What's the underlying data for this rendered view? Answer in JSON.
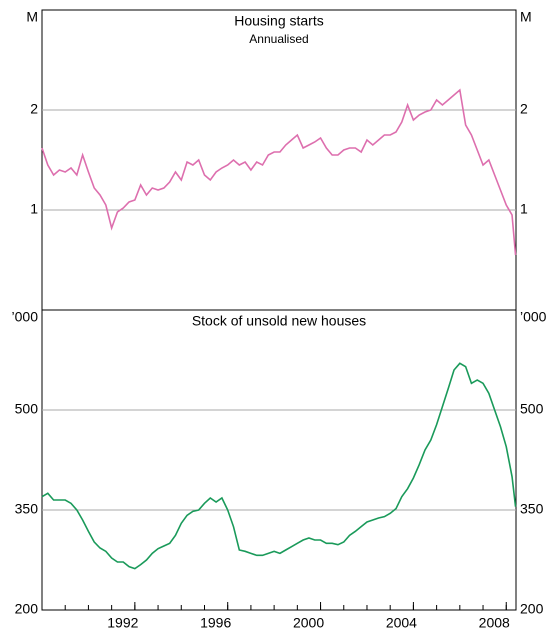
{
  "chart_data": [
    {
      "type": "line",
      "title": "Housing starts",
      "subtitle": "Annualised",
      "y_unit": "M",
      "x": [
        1988.0,
        1988.25,
        1988.5,
        1988.75,
        1989.0,
        1989.25,
        1989.5,
        1989.75,
        1990.0,
        1990.25,
        1990.5,
        1990.75,
        1991.0,
        1991.25,
        1991.5,
        1991.75,
        1992.0,
        1992.25,
        1992.5,
        1992.75,
        1993.0,
        1993.25,
        1993.5,
        1993.75,
        1994.0,
        1994.25,
        1994.5,
        1994.75,
        1995.0,
        1995.25,
        1995.5,
        1995.75,
        1996.0,
        1996.25,
        1996.5,
        1996.75,
        1997.0,
        1997.25,
        1997.5,
        1997.75,
        1998.0,
        1998.25,
        1998.5,
        1998.75,
        1999.0,
        1999.25,
        1999.5,
        1999.75,
        2000.0,
        2000.25,
        2000.5,
        2000.75,
        2001.0,
        2001.25,
        2001.5,
        2001.75,
        2002.0,
        2002.25,
        2002.5,
        2002.75,
        2003.0,
        2003.25,
        2003.5,
        2003.75,
        2004.0,
        2004.25,
        2004.5,
        2004.75,
        2005.0,
        2005.25,
        2005.5,
        2005.75,
        2006.0,
        2006.25,
        2006.5,
        2006.75,
        2007.0,
        2007.25,
        2007.5,
        2007.75,
        2008.0,
        2008.25,
        2008.4
      ],
      "series": [
        {
          "name": "Housing starts",
          "color": "#dd6fae",
          "values": [
            1.62,
            1.45,
            1.35,
            1.4,
            1.38,
            1.42,
            1.35,
            1.55,
            1.38,
            1.22,
            1.15,
            1.05,
            0.82,
            0.98,
            1.02,
            1.08,
            1.1,
            1.25,
            1.15,
            1.22,
            1.2,
            1.22,
            1.28,
            1.38,
            1.3,
            1.48,
            1.45,
            1.5,
            1.35,
            1.3,
            1.38,
            1.42,
            1.45,
            1.5,
            1.45,
            1.48,
            1.4,
            1.48,
            1.45,
            1.55,
            1.58,
            1.58,
            1.65,
            1.7,
            1.75,
            1.62,
            1.65,
            1.68,
            1.72,
            1.62,
            1.55,
            1.55,
            1.6,
            1.62,
            1.62,
            1.58,
            1.7,
            1.65,
            1.7,
            1.75,
            1.75,
            1.78,
            1.88,
            2.05,
            1.9,
            1.95,
            1.98,
            2.0,
            2.1,
            2.05,
            2.1,
            2.15,
            2.2,
            1.85,
            1.75,
            1.6,
            1.45,
            1.5,
            1.35,
            1.2,
            1.05,
            0.95,
            0.55
          ]
        }
      ],
      "xlim": [
        1988,
        2008.42
      ],
      "ylim": [
        0,
        3
      ],
      "yticks": [
        1,
        2
      ],
      "grid": true
    },
    {
      "type": "line",
      "title": "Stock of unsold new houses",
      "y_unit": "’000",
      "x": [
        1988.0,
        1988.25,
        1988.5,
        1988.75,
        1989.0,
        1989.25,
        1989.5,
        1989.75,
        1990.0,
        1990.25,
        1990.5,
        1990.75,
        1991.0,
        1991.25,
        1991.5,
        1991.75,
        1992.0,
        1992.25,
        1992.5,
        1992.75,
        1993.0,
        1993.25,
        1993.5,
        1993.75,
        1994.0,
        1994.25,
        1994.5,
        1994.75,
        1995.0,
        1995.25,
        1995.5,
        1995.75,
        1996.0,
        1996.25,
        1996.5,
        1996.75,
        1997.0,
        1997.25,
        1997.5,
        1997.75,
        1998.0,
        1998.25,
        1998.5,
        1998.75,
        1999.0,
        1999.25,
        1999.5,
        1999.75,
        2000.0,
        2000.25,
        2000.5,
        2000.75,
        2001.0,
        2001.25,
        2001.5,
        2001.75,
        2002.0,
        2002.25,
        2002.5,
        2002.75,
        2003.0,
        2003.25,
        2003.5,
        2003.75,
        2004.0,
        2004.25,
        2004.5,
        2004.75,
        2005.0,
        2005.25,
        2005.5,
        2005.75,
        2006.0,
        2006.25,
        2006.5,
        2006.75,
        2007.0,
        2007.25,
        2007.5,
        2007.75,
        2008.0,
        2008.25,
        2008.4
      ],
      "series": [
        {
          "name": "Stock of unsold new houses",
          "color": "#1a9a5a",
          "values": [
            370,
            375,
            365,
            365,
            365,
            360,
            350,
            335,
            318,
            302,
            293,
            288,
            278,
            272,
            272,
            265,
            262,
            268,
            275,
            285,
            292,
            296,
            300,
            312,
            330,
            342,
            348,
            350,
            360,
            368,
            362,
            368,
            350,
            325,
            290,
            288,
            285,
            282,
            282,
            285,
            288,
            285,
            290,
            295,
            300,
            305,
            308,
            305,
            305,
            300,
            300,
            298,
            302,
            312,
            318,
            325,
            332,
            335,
            338,
            340,
            345,
            352,
            370,
            382,
            398,
            418,
            440,
            455,
            478,
            505,
            532,
            560,
            570,
            565,
            540,
            545,
            540,
            525,
            500,
            475,
            445,
            400,
            355
          ]
        }
      ],
      "xlim": [
        1988,
        2008.42
      ],
      "ylim": [
        200,
        650
      ],
      "yticks": [
        200,
        350,
        500
      ],
      "grid": true,
      "xticks": [
        1992,
        1996,
        2000,
        2004,
        2008
      ],
      "xminorticks": [
        1989,
        1990,
        1991,
        1992,
        1993,
        1994,
        1995,
        1996,
        1997,
        1998,
        1999,
        2000,
        2001,
        2002,
        2003,
        2004,
        2005,
        2006,
        2007,
        2008
      ]
    }
  ]
}
